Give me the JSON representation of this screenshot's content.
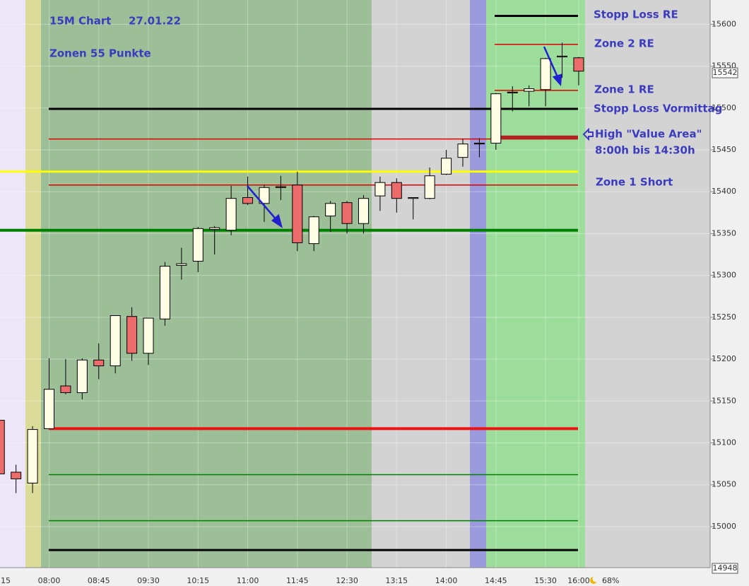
{
  "chart_data": {
    "type": "candlestick",
    "categories": [
      "15",
      null,
      null,
      "08:00",
      null,
      null,
      "08:45",
      null,
      null,
      "09:30",
      null,
      null,
      "10:15",
      null,
      null,
      "11:00",
      null,
      null,
      "11:45",
      null,
      null,
      "12:30",
      null,
      null,
      "13:15",
      null,
      null,
      "14:00",
      null,
      null,
      "14:45",
      null,
      null,
      "15:30",
      null,
      "16:00"
    ],
    "open": [
      15127,
      15065,
      15052,
      15117,
      15168,
      15160,
      15199,
      15192,
      15251,
      15207,
      15248,
      15312,
      15317,
      15355,
      15354,
      15393,
      15386,
      15406,
      15408,
      15338,
      15371,
      15387,
      15362,
      15395,
      15411,
      15392,
      15392,
      15421,
      15441,
      15458,
      15458,
      15519,
      15520,
      15522,
      15561,
      15560
    ],
    "high": [
      15130,
      15074,
      15120,
      15201,
      15200,
      15201,
      15219,
      15252,
      15262,
      15249,
      15316,
      15333,
      15358,
      15359,
      15407,
      15418,
      15408,
      15419,
      15424,
      15371,
      15389,
      15389,
      15396,
      15418,
      15416,
      15393,
      15429,
      15450,
      15463,
      15464,
      15518,
      15526,
      15527,
      15560,
      15578,
      15561
    ],
    "low": [
      15038,
      15040,
      15040,
      15117,
      15158,
      15152,
      15176,
      15183,
      15198,
      15193,
      15240,
      15295,
      15304,
      15325,
      15348,
      15384,
      15364,
      15390,
      15329,
      15329,
      15352,
      15350,
      15350,
      15377,
      15375,
      15367,
      15391,
      15420,
      15430,
      15441,
      15450,
      15496,
      15502,
      15502,
      15536,
      15527
    ],
    "close": [
      15063,
      15057,
      15116,
      15164,
      15160,
      15199,
      15192,
      15252,
      15207,
      15249,
      15311,
      15314,
      15356,
      15357,
      15392,
      15386,
      15405,
      15405,
      15339,
      15370,
      15386,
      15362,
      15392,
      15411,
      15392,
      15393,
      15419,
      15440,
      15457,
      15457,
      15517,
      15518,
      15523,
      15559,
      15562,
      15544
    ],
    "up_color": "#fffde3",
    "down_color": "#ec6b6b",
    "ylim": [
      14951,
      15629
    ],
    "yticks": [
      15000,
      15050,
      15100,
      15150,
      15200,
      15250,
      15300,
      15350,
      15400,
      15450,
      15500,
      15550,
      15600
    ],
    "grid": true,
    "levels": [
      {
        "value": 15610,
        "color": "#000000"
      },
      {
        "value": 15576,
        "color": "#e00000"
      },
      {
        "value": 15521,
        "color": "#e00000"
      },
      {
        "value": 15499,
        "color": "#000000"
      },
      {
        "value": 15463,
        "color": "#e00000"
      },
      {
        "value": 15465,
        "color": "#b22222"
      },
      {
        "value": 15424,
        "color": "#ffff00"
      },
      {
        "value": 15408,
        "color": "#e00000"
      },
      {
        "value": 15354,
        "color": "#008000"
      },
      {
        "value": 15117,
        "color": "#ee1111"
      },
      {
        "value": 15062,
        "color": "#008000"
      },
      {
        "value": 15007,
        "color": "#008000"
      },
      {
        "value": 14972,
        "color": "#000000"
      }
    ],
    "annotations": [
      "15M Chart",
      "27.01.22",
      "Zonen 55 Punkte",
      "Stopp Loss RE",
      "Zone 2 RE",
      "Zone 1 RE",
      "Stopp Loss Vormittag",
      "High \"Value Area\"",
      "8:00h bis 14:30h",
      "Zone 1 Short"
    ],
    "current_price": 15542,
    "range_low": 14948,
    "status_text": "68%"
  }
}
